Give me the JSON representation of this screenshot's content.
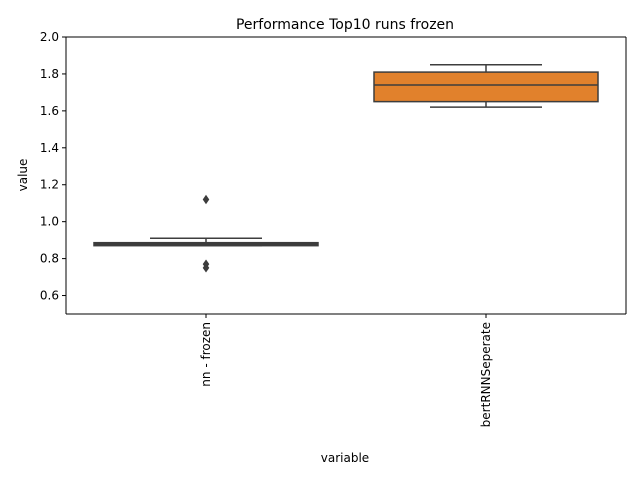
{
  "chart_data": {
    "type": "box",
    "title": "Performance Top10 runs frozen",
    "xlabel": "variable",
    "ylabel": "value",
    "ylim": [
      0.5,
      2.0
    ],
    "yticks": [
      "0.6",
      "0.8",
      "1.0",
      "1.2",
      "1.4",
      "1.6",
      "1.8",
      "2.0"
    ],
    "categories": [
      "nn - frozen",
      "bertRNNSeperate"
    ],
    "boxes": [
      {
        "category": "nn - frozen",
        "whisker_low": 0.87,
        "q1": 0.87,
        "median": 0.88,
        "q3": 0.88,
        "whisker_high": 0.91,
        "outliers": [
          1.12,
          0.77,
          0.75
        ],
        "color": "#3a3a3a"
      },
      {
        "category": "bertRNNSeperate",
        "whisker_low": 1.62,
        "q1": 1.65,
        "median": 1.74,
        "q3": 1.81,
        "whisker_high": 1.85,
        "outliers": [],
        "color": "#e1812c"
      }
    ],
    "grid": false,
    "legend": "none"
  }
}
